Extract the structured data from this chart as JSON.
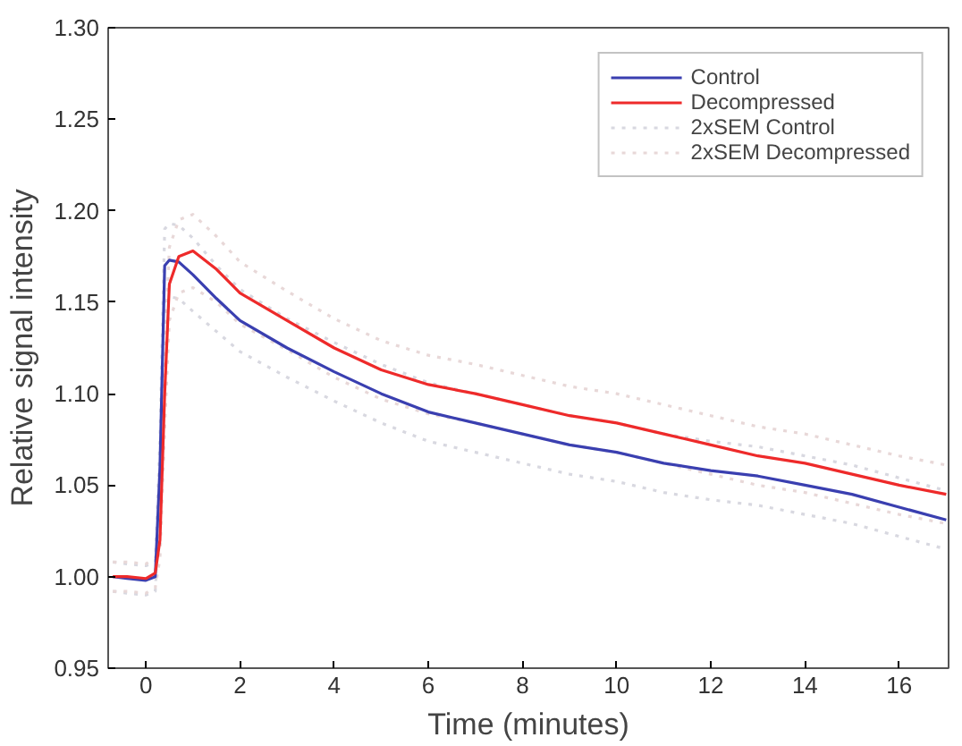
{
  "chart_data": {
    "type": "line",
    "xlabel": "Time (minutes)",
    "ylabel": "Relative signal intensity",
    "x": [
      -0.7,
      -0.4,
      0,
      0.2,
      0.3,
      0.4,
      0.5,
      0.7,
      1,
      1.5,
      2,
      3,
      4,
      5,
      6,
      7,
      8,
      9,
      10,
      11,
      12,
      13,
      14,
      15,
      16,
      17
    ],
    "xlim": [
      -0.8,
      17.05
    ],
    "xticks": [
      0,
      2,
      4,
      6,
      8,
      10,
      12,
      14,
      16
    ],
    "ylim": [
      0.95,
      1.3
    ],
    "yticks": [
      {
        "value": 0.95,
        "label": "0.95"
      },
      {
        "value": 1.0,
        "label": "1.00"
      },
      {
        "value": 1.05,
        "label": "1.05"
      },
      {
        "value": 1.1,
        "label": "1.10"
      },
      {
        "value": 1.15,
        "label": "1.15"
      },
      {
        "value": 1.2,
        "label": "1.20"
      },
      {
        "value": 1.25,
        "label": "1.25"
      },
      {
        "value": 1.3,
        "label": "1.30"
      }
    ],
    "grid": false,
    "legend": "top right",
    "line_style": "solid",
    "series": [
      {
        "name": "2xSEM Control",
        "color": "#d8d8e0",
        "line_style": "dotted",
        "values": [
          1.008,
          1.007,
          1.006,
          1.008,
          1.075,
          1.19,
          1.193,
          1.192,
          1.185,
          1.17,
          1.157,
          1.141,
          1.128,
          1.116,
          1.106,
          1.1,
          1.094,
          1.088,
          1.084,
          1.078,
          1.074,
          1.071,
          1.066,
          1.061,
          1.054,
          1.047
        ]
      },
      {
        "color": "#d8d8e0",
        "line_style": "dotted",
        "values": [
          0.992,
          0.991,
          0.99,
          0.992,
          1.045,
          1.15,
          1.153,
          1.152,
          1.145,
          1.134,
          1.123,
          1.109,
          1.096,
          1.084,
          1.074,
          1.068,
          1.062,
          1.056,
          1.052,
          1.046,
          1.042,
          1.039,
          1.034,
          1.029,
          1.022,
          1.015
        ]
      },
      {
        "name": "2xSEM Decompressed",
        "color": "#e8d8d8",
        "line_style": "dotted",
        "values": [
          1.008,
          1.008,
          1.007,
          1.01,
          1.03,
          1.12,
          1.18,
          1.195,
          1.198,
          1.186,
          1.172,
          1.156,
          1.141,
          1.129,
          1.121,
          1.116,
          1.11,
          1.104,
          1.1,
          1.094,
          1.088,
          1.082,
          1.078,
          1.072,
          1.066,
          1.061
        ]
      },
      {
        "color": "#e8d8d8",
        "line_style": "dotted",
        "values": [
          0.992,
          0.992,
          0.991,
          0.994,
          1.01,
          1.08,
          1.14,
          1.155,
          1.158,
          1.15,
          1.138,
          1.124,
          1.109,
          1.097,
          1.089,
          1.084,
          1.078,
          1.072,
          1.068,
          1.062,
          1.056,
          1.05,
          1.046,
          1.04,
          1.034,
          1.029
        ]
      },
      {
        "name": "Control",
        "color": "#3a3fb0",
        "values": [
          1.0,
          0.999,
          0.998,
          1.0,
          1.06,
          1.17,
          1.173,
          1.172,
          1.165,
          1.152,
          1.14,
          1.125,
          1.112,
          1.1,
          1.09,
          1.084,
          1.078,
          1.072,
          1.068,
          1.062,
          1.058,
          1.055,
          1.05,
          1.045,
          1.038,
          1.031
        ]
      },
      {
        "name": "Decompressed",
        "color": "#ee2a2a",
        "values": [
          1.0,
          1.0,
          0.999,
          1.002,
          1.02,
          1.1,
          1.16,
          1.175,
          1.178,
          1.168,
          1.155,
          1.14,
          1.125,
          1.113,
          1.105,
          1.1,
          1.094,
          1.088,
          1.084,
          1.078,
          1.072,
          1.066,
          1.062,
          1.056,
          1.05,
          1.045
        ]
      }
    ]
  }
}
